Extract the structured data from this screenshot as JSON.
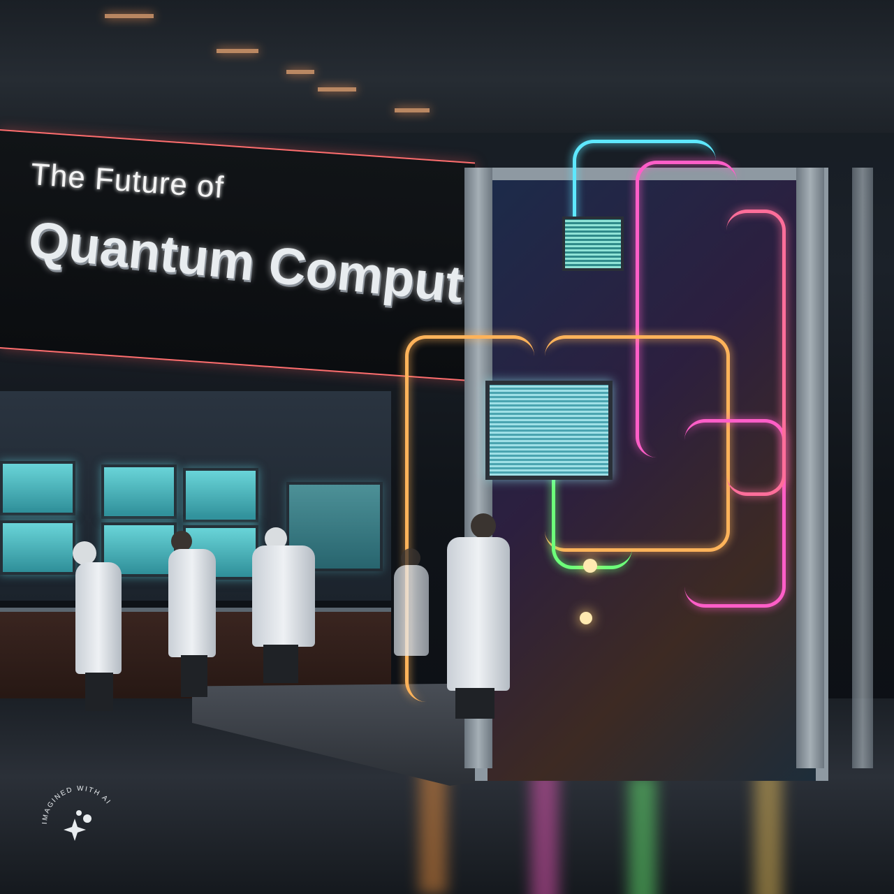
{
  "title": {
    "line1": "The Future of",
    "line2": "Quantum Computing"
  },
  "watermark": {
    "text": "IMAGINED WITH AI"
  },
  "colors": {
    "banner_edge": "#ff6e6e",
    "window_glow": "#69d4d8",
    "wire_pink": "#ff5ec8",
    "wire_orange": "#ffb35a",
    "wire_green": "#6dff7a"
  }
}
